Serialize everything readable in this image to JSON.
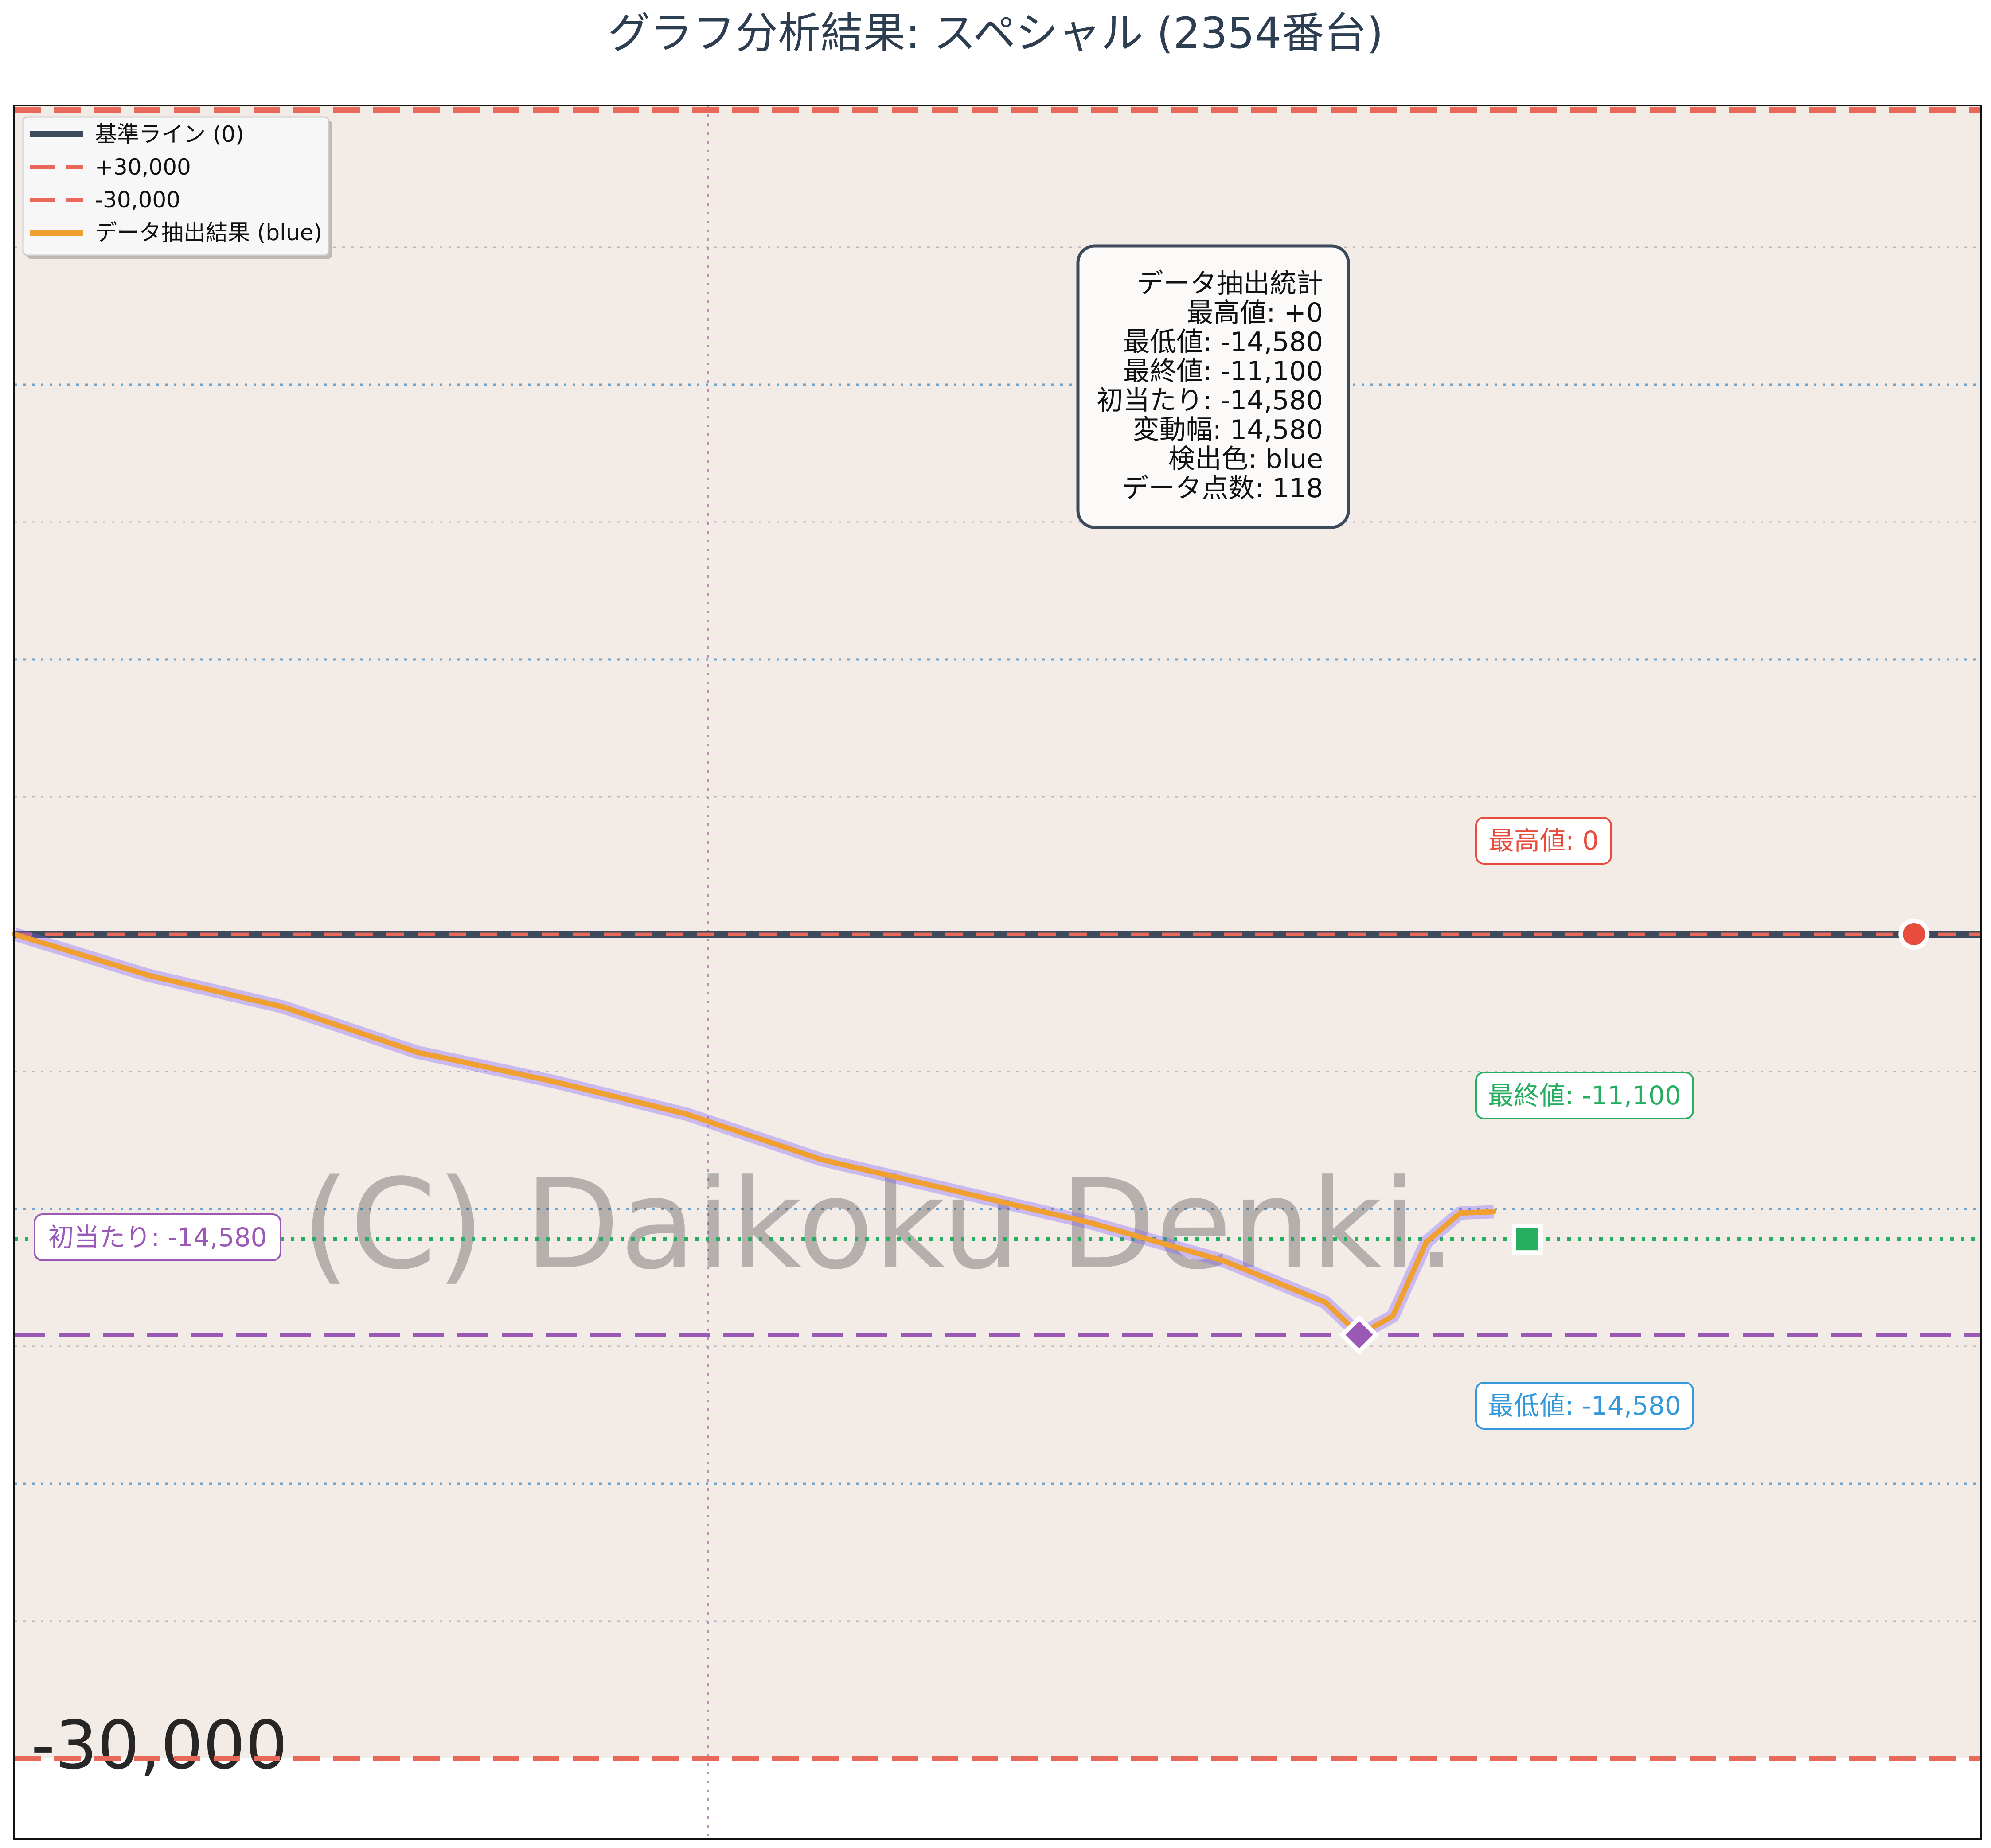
{
  "title": "グラフ分析結果: スペシャル (2354番台)",
  "chart_data": {
    "type": "line",
    "ylim": [
      -30000,
      30000
    ],
    "grid": true,
    "legend": {
      "placement": "top-left",
      "entries": [
        {
          "label": "基準ライン (0)",
          "color": "#3d4a5c",
          "style": "solid"
        },
        {
          "label": "+30,000",
          "color": "#e8685a",
          "style": "dashed"
        },
        {
          "label": "-30,000",
          "color": "#e8685a",
          "style": "dashed"
        },
        {
          "label": "データ抽出結果 (blue)",
          "color": "#f0a030",
          "style": "solid"
        }
      ]
    },
    "series": [
      {
        "name": "データ抽出結果 (blue)",
        "color": "#f0a030",
        "x": [
          0,
          8,
          16,
          24,
          32,
          40,
          48,
          56,
          64,
          72,
          78,
          80,
          82,
          84,
          86,
          88
        ],
        "values": [
          0,
          -1500,
          -2650,
          -4300,
          -5350,
          -6550,
          -8200,
          -9350,
          -10500,
          -11900,
          -13400,
          -14580,
          -13900,
          -11200,
          -10150,
          -10100
        ]
      }
    ],
    "reference_lines": [
      {
        "label": "基準ライン (0)",
        "value": 0,
        "color": "#3d4a5c"
      },
      {
        "label": "+30,000",
        "value": 30000,
        "color": "#e8685a"
      },
      {
        "label": "-30,000",
        "value": -30000,
        "color": "#e8685a"
      },
      {
        "label": "最低値",
        "value": -14580,
        "color": "#9b59b6"
      },
      {
        "label": "最終値",
        "value": -11100,
        "color": "#27ae60"
      }
    ],
    "markers": {
      "max": {
        "x": 113,
        "y": 0
      },
      "min": {
        "x": 80,
        "y": -14580
      },
      "final": {
        "x": 90,
        "y": -11100
      }
    },
    "annotations": [
      {
        "text": "最高値: 0",
        "color": "#e74c3c"
      },
      {
        "text": "最終値: -11,100",
        "color": "#27ae60"
      },
      {
        "text": "初当たり: -14,580",
        "color": "#9b59b6"
      },
      {
        "text": "最低値: -14,580",
        "color": "#3498db"
      }
    ],
    "stats_box": {
      "lines": [
        "データ抽出統計",
        "最高値: +0",
        "最低値: -14,580",
        "最終値: -11,100",
        "初当たり: -14,580",
        "変動幅: 14,580",
        "検出色: blue",
        "データ点数: 118"
      ]
    },
    "background_image_text": {
      "watermark": "(C) Daikoku Denki.",
      "corner_label": "-30,000"
    }
  }
}
